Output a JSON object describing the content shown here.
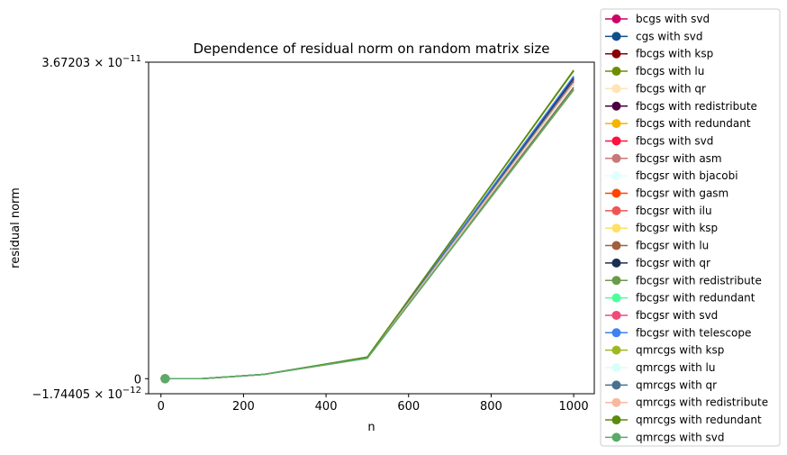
{
  "chart_data": {
    "type": "line",
    "title": "Dependence of residual norm on random matrix size",
    "xlabel": "n",
    "ylabel": "residual norm",
    "xlim": [
      -30,
      1050
    ],
    "ylim": [
      -1.74405e-12,
      3.67203e-11
    ],
    "x_ticks": [
      0,
      200,
      400,
      600,
      800,
      1000
    ],
    "y_tick_labels": [
      {
        "value": 3.67203e-11,
        "mantissa": "3.67203",
        "exponent": "−11"
      },
      {
        "value": 0,
        "plain": "0"
      },
      {
        "value": -1.74405e-12,
        "mantissa": "−1.74405",
        "exponent": "−12"
      }
    ],
    "x": [
      10,
      100,
      250,
      500,
      1000
    ],
    "legend_position": "outside-right",
    "series": [
      {
        "name": "bcgs with svd",
        "color": "#cc0066",
        "values": [
          1e-15,
          1e-14,
          5e-13,
          2.4e-12,
          3.44e-11
        ]
      },
      {
        "name": "cgs with svd",
        "color": "#0d4f8b",
        "values": [
          1e-15,
          1e-14,
          5e-13,
          2.45e-12,
          3.5e-11
        ]
      },
      {
        "name": "fbcgs with ksp",
        "color": "#8b0000",
        "values": [
          1e-15,
          1e-14,
          5e-13,
          2.42e-12,
          3.46e-11
        ]
      },
      {
        "name": "fbcgs with lu",
        "color": "#6b8e00",
        "values": [
          1e-15,
          1e-14,
          5e-13,
          2.5e-12,
          3.58e-11
        ]
      },
      {
        "name": "fbcgs with qr",
        "color": "#ffe4b5",
        "values": [
          1e-15,
          1e-14,
          5e-13,
          2.4e-12,
          3.4e-11
        ]
      },
      {
        "name": "fbcgs with redistribute",
        "color": "#4b0040",
        "values": [
          1e-15,
          1e-14,
          5e-13,
          2.44e-12,
          3.48e-11
        ]
      },
      {
        "name": "fbcgs with redundant",
        "color": "#f4b400",
        "values": [
          1e-15,
          1e-14,
          5e-13,
          2.41e-12,
          3.42e-11
        ]
      },
      {
        "name": "fbcgs with svd",
        "color": "#ff1040",
        "values": [
          1e-15,
          1e-14,
          5e-13,
          2.43e-12,
          3.47e-11
        ]
      },
      {
        "name": "fbcgsr with asm",
        "color": "#c87878",
        "values": [
          1e-15,
          1e-14,
          5e-13,
          2.4e-12,
          3.41e-11
        ]
      },
      {
        "name": "fbcgsr with bjacobi",
        "color": "#e0ffff",
        "values": [
          1e-15,
          1e-14,
          5e-13,
          2.39e-12,
          3.4e-11
        ]
      },
      {
        "name": "fbcgsr with gasm",
        "color": "#ff4500",
        "values": [
          1e-15,
          1e-14,
          5e-13,
          2.42e-12,
          3.45e-11
        ]
      },
      {
        "name": "fbcgsr with ilu",
        "color": "#f05555",
        "values": [
          1e-15,
          1e-14,
          5e-13,
          2.41e-12,
          3.44e-11
        ]
      },
      {
        "name": "fbcgsr with ksp",
        "color": "#ffe066",
        "values": [
          1e-15,
          1e-14,
          5e-13,
          2.4e-12,
          3.43e-11
        ]
      },
      {
        "name": "fbcgsr with lu",
        "color": "#a0603c",
        "values": [
          1e-15,
          1e-14,
          5e-13,
          2.38e-12,
          3.38e-11
        ]
      },
      {
        "name": "fbcgsr with qr",
        "color": "#1a3050",
        "values": [
          1e-15,
          1e-14,
          5e-13,
          2.44e-12,
          3.49e-11
        ]
      },
      {
        "name": "fbcgsr with redistribute",
        "color": "#6a9a4a",
        "values": [
          1e-15,
          1e-14,
          5e-13,
          2.36e-12,
          3.35e-11
        ]
      },
      {
        "name": "fbcgsr with redundant",
        "color": "#4cff9a",
        "values": [
          1e-15,
          1e-14,
          5e-13,
          2.42e-12,
          3.45e-11
        ]
      },
      {
        "name": "fbcgsr with svd",
        "color": "#f04a78",
        "values": [
          1e-15,
          1e-14,
          5e-13,
          2.41e-12,
          3.44e-11
        ]
      },
      {
        "name": "fbcgsr with telescope",
        "color": "#3c82f0",
        "values": [
          1e-15,
          1e-14,
          5e-13,
          2.46e-12,
          3.51e-11
        ]
      },
      {
        "name": "qmrcgs with ksp",
        "color": "#a0b820",
        "values": [
          1e-15,
          1e-14,
          5e-13,
          2.4e-12,
          3.43e-11
        ]
      },
      {
        "name": "qmrcgs with lu",
        "color": "#d8fff8",
        "values": [
          1e-15,
          1e-14,
          5e-13,
          2.4e-12,
          3.42e-11
        ]
      },
      {
        "name": "qmrcgs with qr",
        "color": "#4a7090",
        "values": [
          1e-15,
          1e-14,
          5e-13,
          2.43e-12,
          3.46e-11
        ]
      },
      {
        "name": "qmrcgs with redistribute",
        "color": "#f8b8a0",
        "values": [
          1e-15,
          1e-14,
          5e-13,
          2.41e-12,
          3.43e-11
        ]
      },
      {
        "name": "qmrcgs with redundant",
        "color": "#5a8a10",
        "values": [
          1e-15,
          1e-14,
          5e-13,
          2.52e-12,
          3.57e-11
        ]
      },
      {
        "name": "qmrcgs with svd",
        "color": "#5aaa6a",
        "values": [
          1e-15,
          1e-14,
          5e-13,
          2.38e-12,
          3.36e-11
        ]
      }
    ]
  }
}
